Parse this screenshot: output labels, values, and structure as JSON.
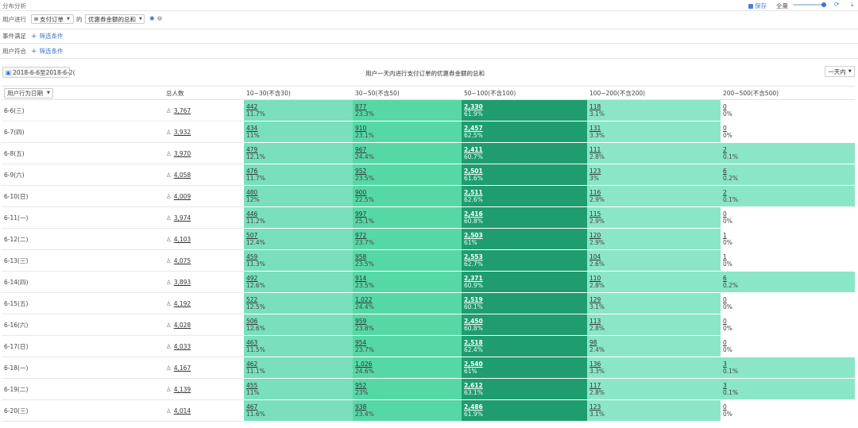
{
  "header": {
    "title": "分布分析",
    "save_label": "保存",
    "scale_label": "全量"
  },
  "filters": {
    "user_label": "用户进行",
    "event_select": "支付订单",
    "of_label": "的",
    "metric_select": "优惠券金额的总和",
    "event_condition_label": "事件满足",
    "user_condition_label": "用户符合",
    "add_filter_label": "筛选条件"
  },
  "chart": {
    "date_range": "2018-6-6至2018-6-2(",
    "title": "用户一天内进行支付订单的优惠券金额的总和",
    "granularity": "一天内"
  },
  "table": {
    "dim_label": "用户行为日期",
    "total_header": "总人数",
    "buckets": [
      "10~30(不含30)",
      "30~50(不含50)",
      "50~100(不含100)",
      "100~200(不含200)",
      "200~500(不含500)"
    ],
    "colors": {
      "light": "#79dfbc",
      "mid": "#56d8a5",
      "dark": "#1f9d6e",
      "low": "#8ae6c6",
      "empty": "#ffffff"
    },
    "rows": [
      {
        "date": "6-6(三)",
        "total": "3,767",
        "cells": [
          [
            "442",
            "11.7%"
          ],
          [
            "877",
            "23.3%"
          ],
          [
            "2,330",
            "61.9%"
          ],
          [
            "118",
            "3.1%"
          ],
          [
            "0",
            "0%"
          ]
        ]
      },
      {
        "date": "6-7(四)",
        "total": "3,932",
        "cells": [
          [
            "434",
            "11%"
          ],
          [
            "910",
            "23.1%"
          ],
          [
            "2,457",
            "62.5%"
          ],
          [
            "131",
            "3.3%"
          ],
          [
            "0",
            "0%"
          ]
        ]
      },
      {
        "date": "6-8(五)",
        "total": "3,970",
        "cells": [
          [
            "479",
            "12.1%"
          ],
          [
            "967",
            "24.4%"
          ],
          [
            "2,411",
            "60.7%"
          ],
          [
            "111",
            "2.8%"
          ],
          [
            "2",
            "0.1%"
          ]
        ]
      },
      {
        "date": "6-9(六)",
        "total": "4,058",
        "cells": [
          [
            "476",
            "11.7%"
          ],
          [
            "952",
            "23.5%"
          ],
          [
            "2,501",
            "61.6%"
          ],
          [
            "123",
            "3%"
          ],
          [
            "6",
            "0.2%"
          ]
        ]
      },
      {
        "date": "6-10(日)",
        "total": "4,009",
        "cells": [
          [
            "480",
            "12%"
          ],
          [
            "900",
            "22.5%"
          ],
          [
            "2,511",
            "62.6%"
          ],
          [
            "116",
            "2.9%"
          ],
          [
            "2",
            "0.1%"
          ]
        ]
      },
      {
        "date": "6-11(一)",
        "total": "3,974",
        "cells": [
          [
            "446",
            "11.2%"
          ],
          [
            "997",
            "25.1%"
          ],
          [
            "2,416",
            "60.8%"
          ],
          [
            "115",
            "2.9%"
          ],
          [
            "0",
            "0%"
          ]
        ]
      },
      {
        "date": "6-12(二)",
        "total": "4,103",
        "cells": [
          [
            "507",
            "12.4%"
          ],
          [
            "972",
            "23.7%"
          ],
          [
            "2,503",
            "61%"
          ],
          [
            "120",
            "2.9%"
          ],
          [
            "1",
            "0%"
          ]
        ]
      },
      {
        "date": "6-13(三)",
        "total": "4,075",
        "cells": [
          [
            "459",
            "11.3%"
          ],
          [
            "958",
            "23.5%"
          ],
          [
            "2,553",
            "62.7%"
          ],
          [
            "104",
            "2.6%"
          ],
          [
            "1",
            "0%"
          ]
        ]
      },
      {
        "date": "6-14(四)",
        "total": "3,893",
        "cells": [
          [
            "492",
            "12.6%"
          ],
          [
            "914",
            "23.5%"
          ],
          [
            "2,371",
            "60.9%"
          ],
          [
            "110",
            "2.8%"
          ],
          [
            "6",
            "0.2%"
          ]
        ]
      },
      {
        "date": "6-15(五)",
        "total": "4,192",
        "cells": [
          [
            "522",
            "12.5%"
          ],
          [
            "1,022",
            "24.4%"
          ],
          [
            "2,519",
            "60.1%"
          ],
          [
            "129",
            "3.1%"
          ],
          [
            "0",
            "0%"
          ]
        ]
      },
      {
        "date": "6-16(六)",
        "total": "4,028",
        "cells": [
          [
            "506",
            "12.6%"
          ],
          [
            "959",
            "23.8%"
          ],
          [
            "2,450",
            "60.8%"
          ],
          [
            "113",
            "2.8%"
          ],
          [
            "0",
            "0%"
          ]
        ]
      },
      {
        "date": "6-17(日)",
        "total": "4,033",
        "cells": [
          [
            "463",
            "11.5%"
          ],
          [
            "954",
            "23.7%"
          ],
          [
            "2,518",
            "62.4%"
          ],
          [
            "98",
            "2.4%"
          ],
          [
            "0",
            "0%"
          ]
        ]
      },
      {
        "date": "6-18(一)",
        "total": "4,167",
        "cells": [
          [
            "462",
            "11.1%"
          ],
          [
            "1,026",
            "24.6%"
          ],
          [
            "2,540",
            "61%"
          ],
          [
            "136",
            "3.3%"
          ],
          [
            "3",
            "0.1%"
          ]
        ]
      },
      {
        "date": "6-19(二)",
        "total": "4,139",
        "cells": [
          [
            "455",
            "11%"
          ],
          [
            "952",
            "23%"
          ],
          [
            "2,612",
            "63.1%"
          ],
          [
            "117",
            "2.8%"
          ],
          [
            "3",
            "0.1%"
          ]
        ]
      },
      {
        "date": "6-20(三)",
        "total": "4,014",
        "cells": [
          [
            "467",
            "11.6%"
          ],
          [
            "938",
            "23.4%"
          ],
          [
            "2,486",
            "61.9%"
          ],
          [
            "123",
            "3.1%"
          ],
          [
            "0",
            "0%"
          ]
        ]
      }
    ]
  }
}
